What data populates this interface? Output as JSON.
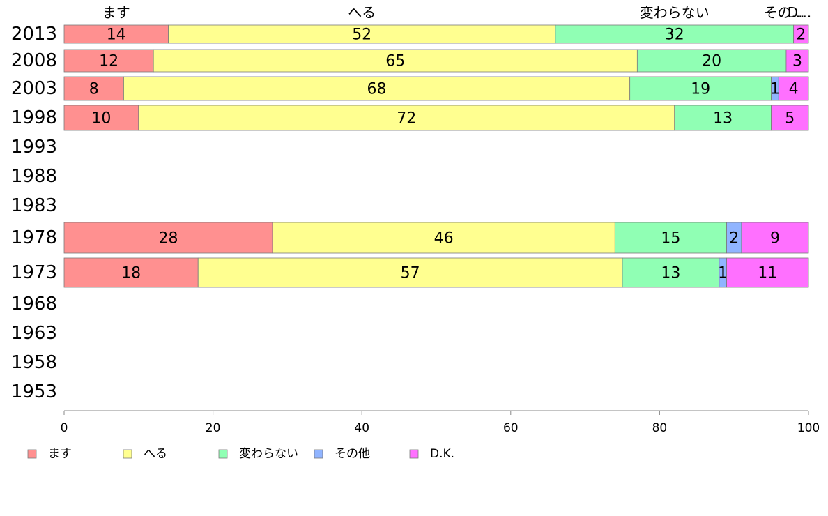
{
  "chart_data": {
    "type": "bar",
    "orientation": "horizontal",
    "stacked": true,
    "categories": [
      "2013",
      "2008",
      "2003",
      "1998",
      "1993",
      "1988",
      "1983",
      "1978",
      "1973",
      "1968",
      "1963",
      "1958",
      "1953"
    ],
    "series": [
      {
        "name": "ます",
        "color": "#ff9090",
        "values": [
          14,
          12,
          8,
          10,
          null,
          null,
          null,
          28,
          18,
          null,
          null,
          null,
          null
        ]
      },
      {
        "name": "へる",
        "color": "#ffff90",
        "values": [
          52,
          65,
          68,
          72,
          null,
          null,
          null,
          46,
          57,
          null,
          null,
          null,
          null
        ]
      },
      {
        "name": "変わらない",
        "color": "#90ffb4",
        "values": [
          32,
          20,
          19,
          13,
          null,
          null,
          null,
          15,
          13,
          null,
          null,
          null,
          null
        ]
      },
      {
        "name": "その他",
        "color": "#90b4ff",
        "values": [
          0,
          0,
          1,
          0,
          null,
          null,
          null,
          2,
          1,
          null,
          null,
          null,
          null
        ]
      },
      {
        "name": "D.K.",
        "color": "#ff70ff",
        "values": [
          2,
          3,
          4,
          5,
          null,
          null,
          null,
          9,
          11,
          null,
          null,
          null,
          null
        ]
      }
    ],
    "top_labels": [
      "ます",
      "へる",
      "変わらない",
      "その...",
      "D..."
    ],
    "xlim": [
      0,
      100
    ],
    "xticks": [
      "0",
      "20",
      "40",
      "60",
      "80",
      "100"
    ],
    "grid": false,
    "legend_position": "bottom"
  }
}
